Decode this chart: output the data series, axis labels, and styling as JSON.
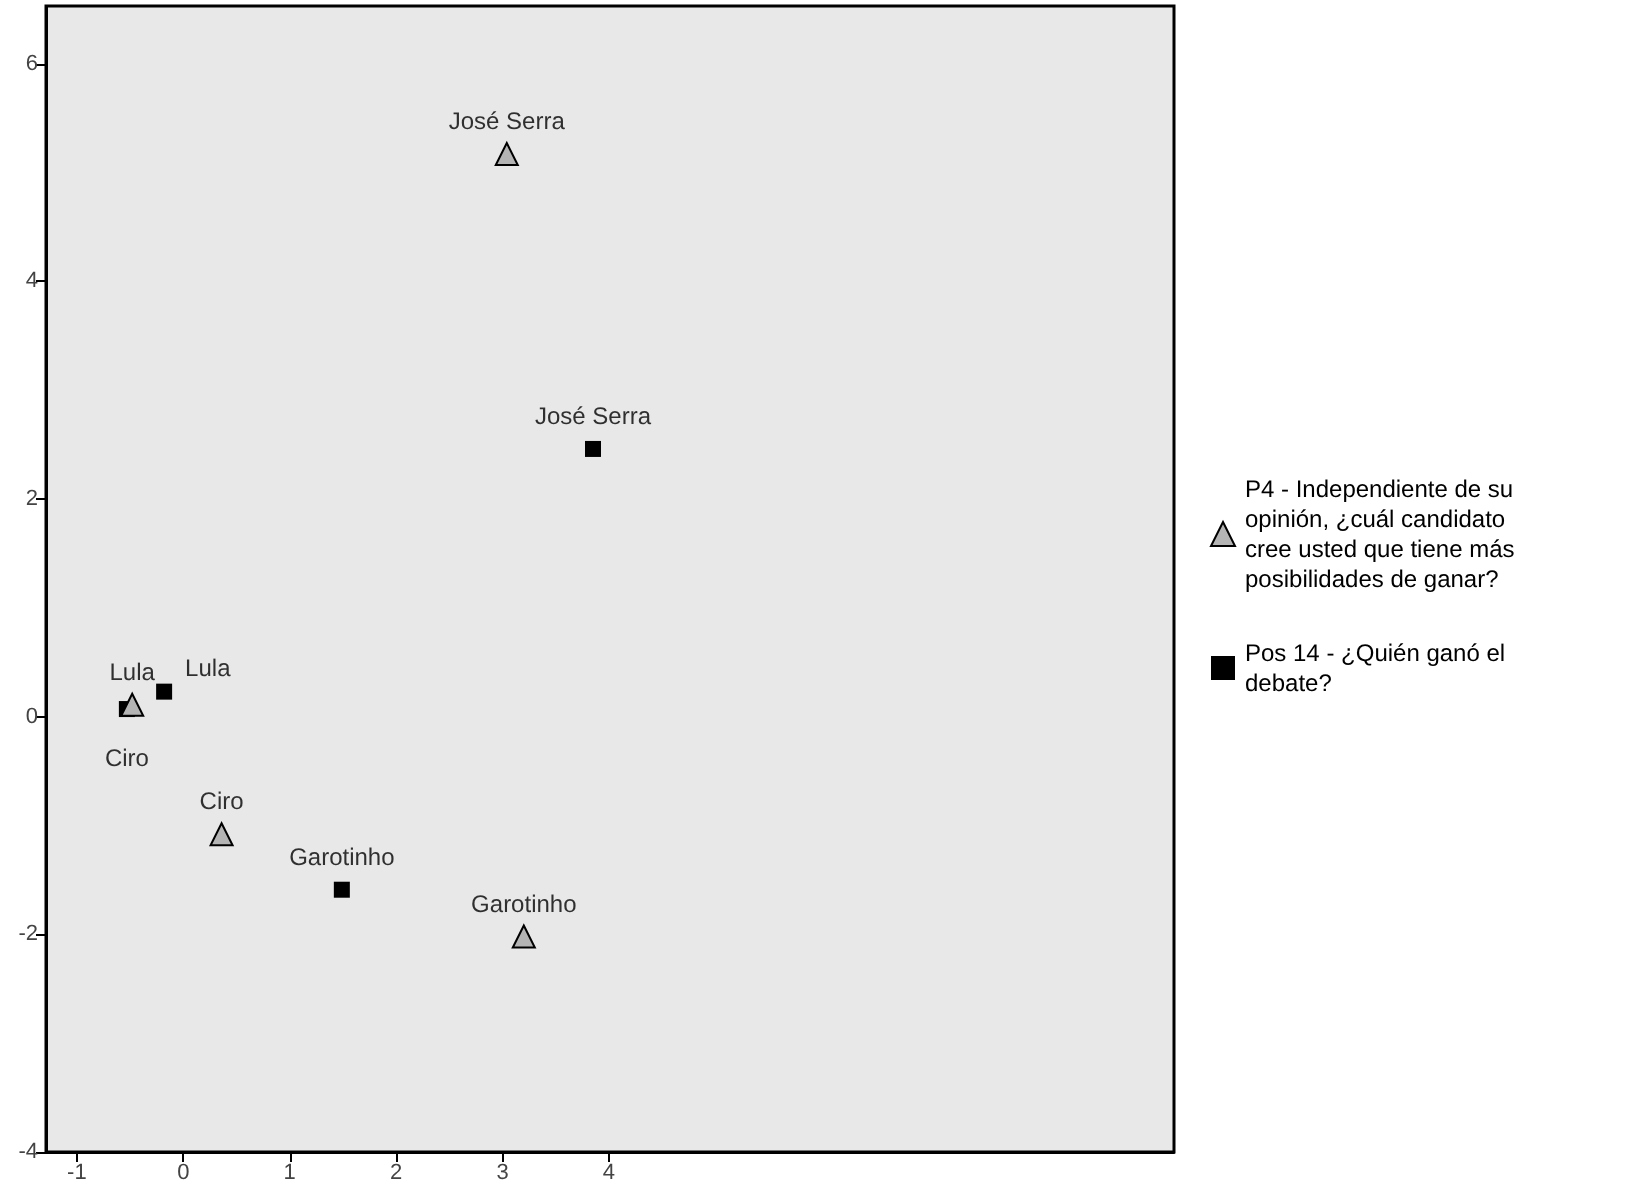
{
  "chart_data": {
    "type": "scatter",
    "series": [
      {
        "name": "P4 - Independiente de su opinión, ¿cuál candidato cree usted que tiene más posibilidades de ganar?",
        "color": "#b4b4b4",
        "marker": "triangle",
        "x": [
          3.04,
          -0.48,
          0.36,
          3.2
        ],
        "values": [
          5.17,
          0.11,
          -1.08,
          -2.02
        ]
      },
      {
        "name": "Pos 14 - ¿Quién ganó el debate?",
        "color": "#000000",
        "marker": "square",
        "x": [
          3.85,
          -0.18,
          -0.53,
          1.49
        ],
        "values": [
          2.46,
          0.23,
          0.07,
          -1.59
        ]
      }
    ],
    "annotations": [
      {
        "text": "José Serra",
        "x": 3.04,
        "y": 5.17
      },
      {
        "text": "José Serra",
        "x": 3.85,
        "y": 2.46
      },
      {
        "text": "Lula",
        "x": -0.48,
        "y": 0.11
      },
      {
        "text": "Ciro",
        "x": -0.53,
        "y": 0.07
      },
      {
        "text": "Lula",
        "x": -0.18,
        "y": 0.23
      },
      {
        "text": "Ciro",
        "x": 0.36,
        "y": -1.08
      },
      {
        "text": "Garotinho",
        "x": 1.49,
        "y": -1.59
      },
      {
        "text": "Garotinho",
        "x": 3.2,
        "y": -2.02
      }
    ],
    "xlim": [
      -1.29,
      9.31
    ],
    "xticks": [
      -1,
      0,
      1,
      2,
      3,
      4
    ],
    "ylim": [
      -4,
      6.53
    ],
    "yticks": [
      -4,
      -2,
      0,
      2,
      4,
      6
    ],
    "grid": false,
    "legend": "right"
  }
}
